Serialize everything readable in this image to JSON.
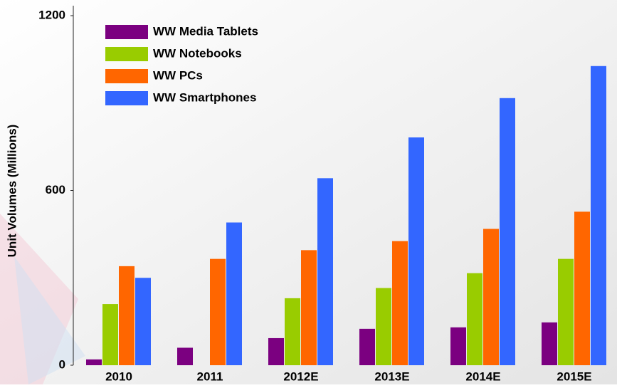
{
  "chart_data": {
    "type": "bar",
    "y_axis_label": "Unit Volumes (Millions)",
    "categories": [
      "2010",
      "2011",
      "2012E",
      "2013E",
      "2014E",
      "2015E"
    ],
    "series": [
      {
        "name": "WW Media Tablets",
        "color": "#7b0080",
        "values": [
          20,
          60,
          93,
          125,
          130,
          147
        ]
      },
      {
        "name": "WW Notebooks",
        "color": "#99cc00",
        "values": [
          210,
          null,
          230,
          265,
          316,
          365
        ]
      },
      {
        "name": "WW PCs",
        "color": "#ff6600",
        "values": [
          340,
          365,
          395,
          426,
          468,
          527
        ]
      },
      {
        "name": "WW Smartphones",
        "color": "#3366ff",
        "values": [
          300,
          490,
          642,
          782,
          917,
          1027
        ]
      }
    ],
    "ylim": [
      0,
      1200
    ],
    "yticks": [
      0,
      600,
      1200
    ],
    "legend": "top-left"
  }
}
